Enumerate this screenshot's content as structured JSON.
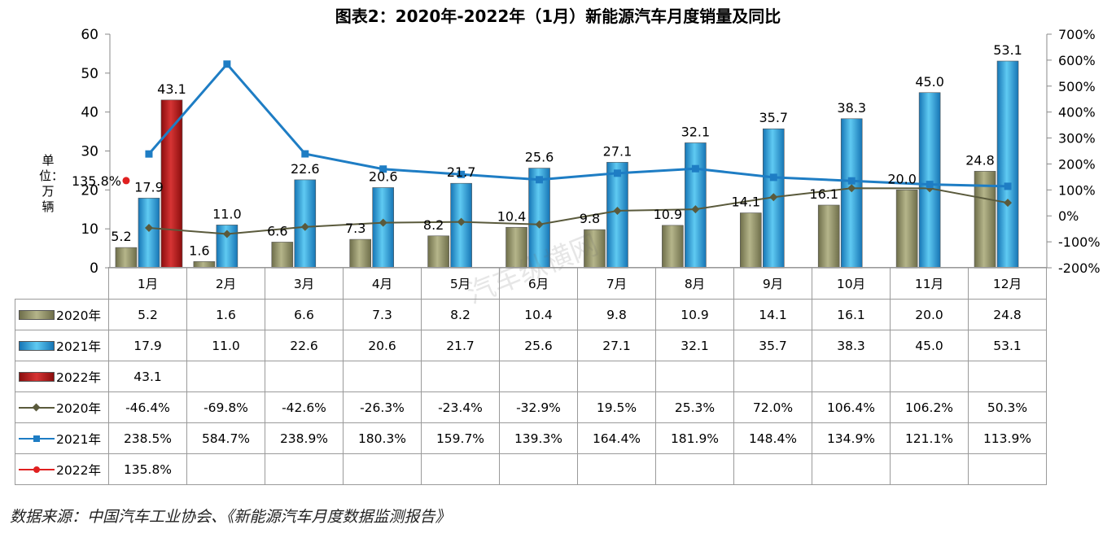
{
  "chart_data": {
    "type": "bar",
    "title": "图表2：2020年-2022年（1月）新能源汽车月度销量及同比",
    "ylabel": "单位：万辆",
    "ylim": [
      0,
      60
    ],
    "yticks": [
      "0",
      "10",
      "20",
      "30",
      "40",
      "50",
      "60"
    ],
    "y2lim": [
      -200,
      700
    ],
    "y2ticks": [
      "-200%",
      "-100%",
      "0%",
      "100%",
      "200%",
      "300%",
      "400%",
      "500%",
      "600%",
      "700%"
    ],
    "categories": [
      "1月",
      "2月",
      "3月",
      "4月",
      "5月",
      "6月",
      "7月",
      "8月",
      "9月",
      "10月",
      "11月",
      "12月"
    ],
    "series": [
      {
        "name": "2020年",
        "kind": "bar",
        "color": "#8b8b63",
        "values": [
          5.2,
          1.6,
          6.6,
          7.3,
          8.2,
          10.4,
          9.8,
          10.9,
          14.1,
          16.1,
          20.0,
          24.8
        ],
        "labels": [
          "5.2",
          "1.6",
          "6.6",
          "7.3",
          "8.2",
          "10.4",
          "9.8",
          "10.9",
          "14.1",
          "16.1",
          "20.0",
          "24.8"
        ]
      },
      {
        "name": "2021年",
        "kind": "bar",
        "color": "#2f9fd6",
        "values": [
          17.9,
          11.0,
          22.6,
          20.6,
          21.7,
          25.6,
          27.1,
          32.1,
          35.7,
          38.3,
          45.0,
          53.1
        ],
        "labels": [
          "17.9",
          "11.0",
          "22.6",
          "20.6",
          "21.7",
          "25.6",
          "27.1",
          "32.1",
          "35.7",
          "38.3",
          "45.0",
          "53.1"
        ]
      },
      {
        "name": "2022年",
        "kind": "bar",
        "color": "#b01818",
        "values": [
          43.1,
          null,
          null,
          null,
          null,
          null,
          null,
          null,
          null,
          null,
          null,
          null
        ],
        "labels": [
          "43.1",
          "",
          "",
          "",
          "",
          "",
          "",
          "",
          "",
          "",
          "",
          ""
        ]
      }
    ],
    "line_series": [
      {
        "name": "2020年",
        "kind": "line",
        "axis": "right",
        "color": "#5a5a3c",
        "marker": "diamond",
        "values": [
          -46.4,
          -69.8,
          -42.6,
          -26.3,
          -23.4,
          -32.9,
          19.5,
          25.3,
          72.0,
          106.4,
          106.2,
          50.3
        ],
        "labels": [
          "-46.4%",
          "-69.8%",
          "-42.6%",
          "-26.3%",
          "-23.4%",
          "-32.9%",
          "19.5%",
          "25.3%",
          "72.0%",
          "106.4%",
          "106.2%",
          "50.3%"
        ]
      },
      {
        "name": "2021年",
        "kind": "line",
        "axis": "right",
        "color": "#1e7dc4",
        "marker": "square",
        "values": [
          238.5,
          584.7,
          238.9,
          180.3,
          159.7,
          139.3,
          164.4,
          181.9,
          148.4,
          134.9,
          121.1,
          113.9
        ],
        "labels": [
          "238.5%",
          "584.7%",
          "238.9%",
          "180.3%",
          "159.7%",
          "139.3%",
          "164.4%",
          "181.9%",
          "148.4%",
          "134.9%",
          "121.1%",
          "113.9%"
        ]
      },
      {
        "name": "2022年",
        "kind": "line",
        "axis": "right",
        "color": "#e02020",
        "marker": "circle",
        "values": [
          135.8,
          null,
          null,
          null,
          null,
          null,
          null,
          null,
          null,
          null,
          null,
          null
        ],
        "labels": [
          "135.8%",
          "",
          "",
          "",
          "",
          "",
          "",
          "",
          "",
          "",
          "",
          ""
        ]
      }
    ],
    "legend": "data-table-left",
    "grid": false
  },
  "source": "数据来源：中国汽车工业协会、《新能源汽车月度数据监测报告》",
  "watermark_text": "汽车纵横网"
}
